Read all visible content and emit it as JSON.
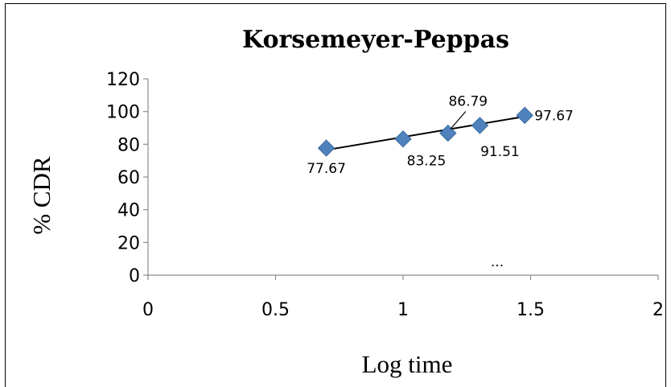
{
  "chart_data": {
    "type": "scatter",
    "title": "Korsemeyer-Peppas",
    "xlabel": "Log time",
    "ylabel": "% CDR",
    "xlim": [
      0,
      2
    ],
    "ylim": [
      0,
      120
    ],
    "x_ticks": [
      "0",
      "0.5",
      "1",
      "1.5",
      "2"
    ],
    "y_ticks": [
      "0",
      "20",
      "40",
      "60",
      "80",
      "100",
      "120"
    ],
    "series": [
      {
        "x": [
          0.699,
          1.0,
          1.176,
          1.301,
          1.477
        ],
        "y": [
          77.67,
          83.25,
          86.79,
          91.51,
          97.67
        ],
        "labels": [
          "77.67",
          "83.25",
          "86.79",
          "91.51",
          "97.67"
        ],
        "marker": "diamond",
        "color": "#4F81BD"
      }
    ],
    "trendline": {
      "type": "linear",
      "x_range": [
        0.699,
        1.477
      ],
      "y_range": [
        76.5,
        97.0
      ],
      "color": "#000000"
    },
    "annotation": "...",
    "grid": false
  }
}
